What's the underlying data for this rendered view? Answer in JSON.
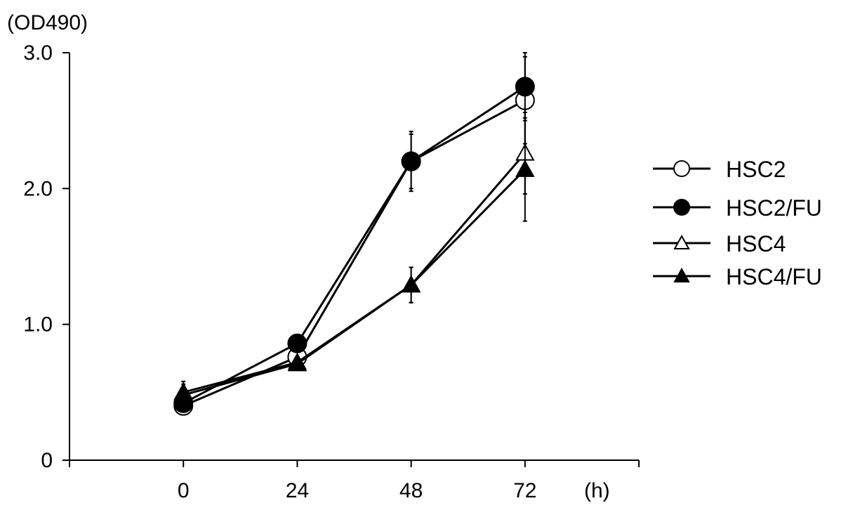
{
  "chart_data": {
    "type": "line",
    "ylabel_unit": "(OD490)",
    "xlabel_unit": "(h)",
    "x": [
      0,
      24,
      48,
      72
    ],
    "x_tick_labels": [
      "0",
      "24",
      "48",
      "72"
    ],
    "xlim": [
      -24,
      96
    ],
    "y_ticks": [
      0,
      1,
      2,
      3
    ],
    "y_tick_labels": [
      "0",
      "1.0",
      "2.0",
      "3.0"
    ],
    "ylim": [
      0,
      3
    ],
    "grid": false,
    "legend_position": "right",
    "series": [
      {
        "name": "HSC2",
        "marker": "circle",
        "filled": false,
        "values": [
          0.4,
          0.76,
          2.2,
          2.65
        ],
        "errors": [
          0.03,
          0.04,
          0.2,
          0.32
        ]
      },
      {
        "name": "HSC2/FU",
        "marker": "circle",
        "filled": true,
        "values": [
          0.42,
          0.86,
          2.2,
          2.75
        ],
        "errors": [
          0.03,
          0.04,
          0.22,
          0.25
        ]
      },
      {
        "name": "HSC4",
        "marker": "triangle",
        "filled": false,
        "values": [
          0.5,
          0.72,
          1.29,
          2.26
        ],
        "errors": [
          0.08,
          0.04,
          0.13,
          0.3
        ]
      },
      {
        "name": "HSC4/FU",
        "marker": "triangle",
        "filled": true,
        "values": [
          0.48,
          0.71,
          1.29,
          2.14
        ],
        "errors": [
          0.08,
          0.04,
          0.13,
          0.38
        ]
      }
    ]
  }
}
